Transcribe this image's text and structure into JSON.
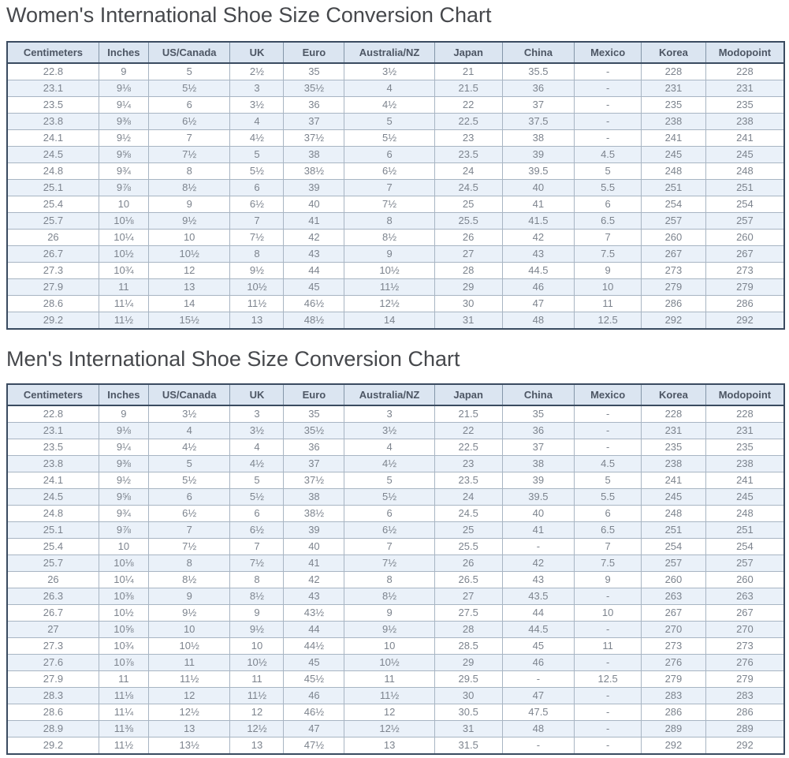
{
  "titles": {
    "women": "Women's International Shoe Size Conversion Chart",
    "men": "Men's International Shoe Size Conversion Chart"
  },
  "columns": [
    "Centimeters",
    "Inches",
    "US/Canada",
    "UK",
    "Euro",
    "Australia/NZ",
    "Japan",
    "China",
    "Mexico",
    "Korea",
    "Modopoint"
  ],
  "colors": {
    "header_bg": "#dbe5f1",
    "alt_row_bg": "#eaf1f9",
    "outer_border": "#3a4b60",
    "inner_border": "#a8b5c3",
    "header_text": "#4d5664",
    "cell_text": "#7d848e",
    "title_text": "#46484c"
  },
  "women": {
    "rows": [
      [
        "22.8",
        "9",
        "5",
        "2½",
        "35",
        "3½",
        "21",
        "35.5",
        "-",
        "228",
        "228"
      ],
      [
        "23.1",
        "9⅛",
        "5½",
        "3",
        "35½",
        "4",
        "21.5",
        "36",
        "-",
        "231",
        "231"
      ],
      [
        "23.5",
        "9¼",
        "6",
        "3½",
        "36",
        "4½",
        "22",
        "37",
        "-",
        "235",
        "235"
      ],
      [
        "23.8",
        "9⅜",
        "6½",
        "4",
        "37",
        "5",
        "22.5",
        "37.5",
        "-",
        "238",
        "238"
      ],
      [
        "24.1",
        "9½",
        "7",
        "4½",
        "37½",
        "5½",
        "23",
        "38",
        "-",
        "241",
        "241"
      ],
      [
        "24.5",
        "9⅝",
        "7½",
        "5",
        "38",
        "6",
        "23.5",
        "39",
        "4.5",
        "245",
        "245"
      ],
      [
        "24.8",
        "9¾",
        "8",
        "5½",
        "38½",
        "6½",
        "24",
        "39.5",
        "5",
        "248",
        "248"
      ],
      [
        "25.1",
        "9⅞",
        "8½",
        "6",
        "39",
        "7",
        "24.5",
        "40",
        "5.5",
        "251",
        "251"
      ],
      [
        "25.4",
        "10",
        "9",
        "6½",
        "40",
        "7½",
        "25",
        "41",
        "6",
        "254",
        "254"
      ],
      [
        "25.7",
        "10⅛",
        "9½",
        "7",
        "41",
        "8",
        "25.5",
        "41.5",
        "6.5",
        "257",
        "257"
      ],
      [
        "26",
        "10¼",
        "10",
        "7½",
        "42",
        "8½",
        "26",
        "42",
        "7",
        "260",
        "260"
      ],
      [
        "26.7",
        "10½",
        "10½",
        "8",
        "43",
        "9",
        "27",
        "43",
        "7.5",
        "267",
        "267"
      ],
      [
        "27.3",
        "10¾",
        "12",
        "9½",
        "44",
        "10½",
        "28",
        "44.5",
        "9",
        "273",
        "273"
      ],
      [
        "27.9",
        "11",
        "13",
        "10½",
        "45",
        "11½",
        "29",
        "46",
        "10",
        "279",
        "279"
      ],
      [
        "28.6",
        "11¼",
        "14",
        "11½",
        "46½",
        "12½",
        "30",
        "47",
        "11",
        "286",
        "286"
      ],
      [
        "29.2",
        "11½",
        "15½",
        "13",
        "48½",
        "14",
        "31",
        "48",
        "12.5",
        "292",
        "292"
      ]
    ]
  },
  "men": {
    "rows": [
      [
        "22.8",
        "9",
        "3½",
        "3",
        "35",
        "3",
        "21.5",
        "35",
        "-",
        "228",
        "228"
      ],
      [
        "23.1",
        "9⅛",
        "4",
        "3½",
        "35½",
        "3½",
        "22",
        "36",
        "-",
        "231",
        "231"
      ],
      [
        "23.5",
        "9¼",
        "4½",
        "4",
        "36",
        "4",
        "22.5",
        "37",
        "-",
        "235",
        "235"
      ],
      [
        "23.8",
        "9⅜",
        "5",
        "4½",
        "37",
        "4½",
        "23",
        "38",
        "4.5",
        "238",
        "238"
      ],
      [
        "24.1",
        "9½",
        "5½",
        "5",
        "37½",
        "5",
        "23.5",
        "39",
        "5",
        "241",
        "241"
      ],
      [
        "24.5",
        "9⅝",
        "6",
        "5½",
        "38",
        "5½",
        "24",
        "39.5",
        "5.5",
        "245",
        "245"
      ],
      [
        "24.8",
        "9¾",
        "6½",
        "6",
        "38½",
        "6",
        "24.5",
        "40",
        "6",
        "248",
        "248"
      ],
      [
        "25.1",
        "9⅞",
        "7",
        "6½",
        "39",
        "6½",
        "25",
        "41",
        "6.5",
        "251",
        "251"
      ],
      [
        "25.4",
        "10",
        "7½",
        "7",
        "40",
        "7",
        "25.5",
        "-",
        "7",
        "254",
        "254"
      ],
      [
        "25.7",
        "10⅛",
        "8",
        "7½",
        "41",
        "7½",
        "26",
        "42",
        "7.5",
        "257",
        "257"
      ],
      [
        "26",
        "10¼",
        "8½",
        "8",
        "42",
        "8",
        "26.5",
        "43",
        "9",
        "260",
        "260"
      ],
      [
        "26.3",
        "10⅜",
        "9",
        "8½",
        "43",
        "8½",
        "27",
        "43.5",
        "-",
        "263",
        "263"
      ],
      [
        "26.7",
        "10½",
        "9½",
        "9",
        "43½",
        "9",
        "27.5",
        "44",
        "10",
        "267",
        "267"
      ],
      [
        "27",
        "10⅝",
        "10",
        "9½",
        "44",
        "9½",
        "28",
        "44.5",
        "-",
        "270",
        "270"
      ],
      [
        "27.3",
        "10¾",
        "10½",
        "10",
        "44½",
        "10",
        "28.5",
        "45",
        "11",
        "273",
        "273"
      ],
      [
        "27.6",
        "10⅞",
        "11",
        "10½",
        "45",
        "10½",
        "29",
        "46",
        "-",
        "276",
        "276"
      ],
      [
        "27.9",
        "11",
        "11½",
        "11",
        "45½",
        "11",
        "29.5",
        "-",
        "12.5",
        "279",
        "279"
      ],
      [
        "28.3",
        "11⅛",
        "12",
        "11½",
        "46",
        "11½",
        "30",
        "47",
        "-",
        "283",
        "283"
      ],
      [
        "28.6",
        "11¼",
        "12½",
        "12",
        "46½",
        "12",
        "30.5",
        "47.5",
        "-",
        "286",
        "286"
      ],
      [
        "28.9",
        "11⅜",
        "13",
        "12½",
        "47",
        "12½",
        "31",
        "48",
        "-",
        "289",
        "289"
      ],
      [
        "29.2",
        "11½",
        "13½",
        "13",
        "47½",
        "13",
        "31.5",
        "-",
        "-",
        "292",
        "292"
      ]
    ]
  }
}
